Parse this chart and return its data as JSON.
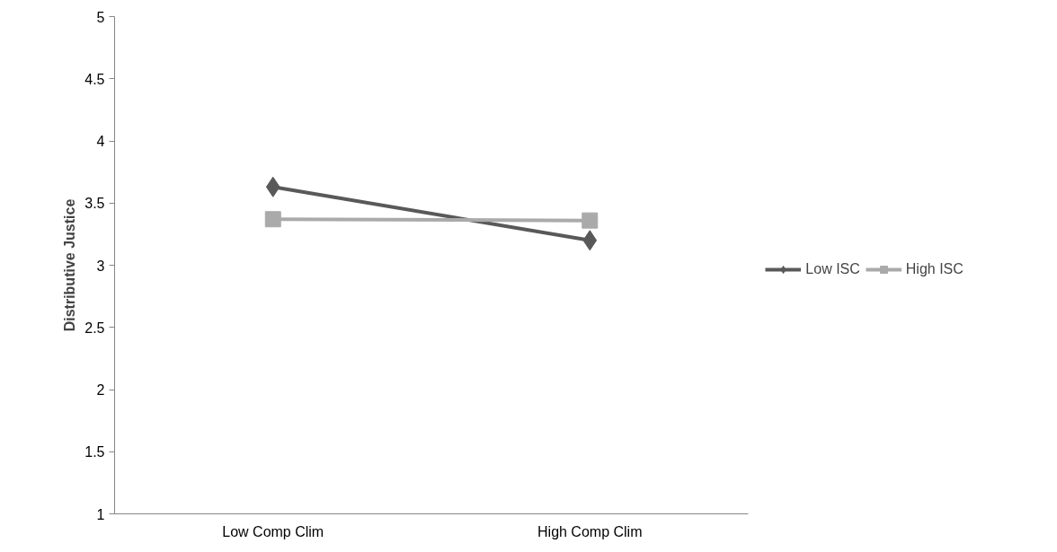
{
  "chart_data": {
    "type": "line",
    "ylabel": "Distributive Justice",
    "categories": [
      "Low Comp Clim",
      "High Comp Clim"
    ],
    "series": [
      {
        "name": "Low ISC",
        "color": "#595959",
        "marker": "diamond",
        "values": [
          3.63,
          3.2
        ]
      },
      {
        "name": "High ISC",
        "color": "#aaaaaa",
        "marker": "square",
        "values": [
          3.37,
          3.36
        ]
      }
    ],
    "ylim": [
      1,
      5
    ],
    "yticks": [
      1,
      1.5,
      2,
      2.5,
      3,
      3.5,
      4,
      4.5,
      5
    ],
    "grid": false,
    "legend": "right",
    "line_style": "solid"
  }
}
